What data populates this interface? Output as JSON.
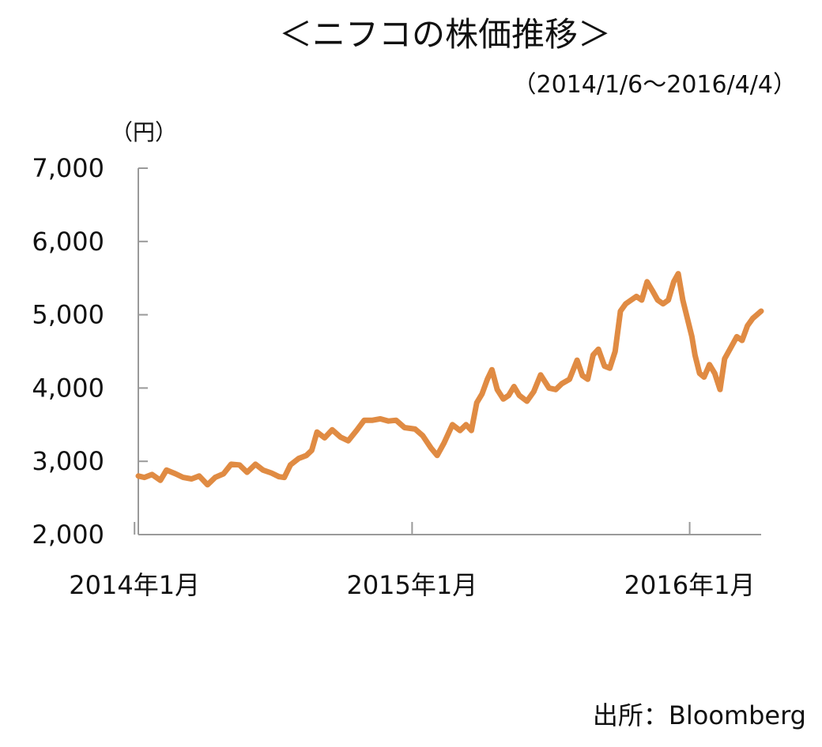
{
  "chart_data": {
    "type": "line",
    "title": "＜ニフコの株価推移＞",
    "subtitle": "（2014/1/6～2016/4/4）",
    "ylabel": "（円）",
    "xlabel": "",
    "source": "出所：Bloomberg",
    "ylim": [
      2000,
      7000
    ],
    "yticks": [
      2000,
      3000,
      4000,
      5000,
      6000,
      7000
    ],
    "ytick_labels": [
      "2,000",
      "3,000",
      "4,000",
      "5,000",
      "6,000",
      "7,000"
    ],
    "x_range": [
      "2014-01-06",
      "2016-04-04"
    ],
    "xticks": [
      "2014-01-01",
      "2015-01-01",
      "2016-01-01"
    ],
    "xtick_labels": [
      "2014年1月",
      "2015年1月",
      "2016年1月"
    ],
    "grid": false,
    "series": [
      {
        "color": "#e08b43",
        "points": [
          [
            "2014-01-06",
            2800
          ],
          [
            "2014-01-14",
            2780
          ],
          [
            "2014-01-24",
            2820
          ],
          [
            "2014-02-04",
            2740
          ],
          [
            "2014-02-12",
            2880
          ],
          [
            "2014-02-24",
            2830
          ],
          [
            "2014-03-06",
            2780
          ],
          [
            "2014-03-17",
            2760
          ],
          [
            "2014-03-27",
            2800
          ],
          [
            "2014-04-07",
            2680
          ],
          [
            "2014-04-17",
            2780
          ],
          [
            "2014-04-28",
            2830
          ],
          [
            "2014-05-08",
            2960
          ],
          [
            "2014-05-19",
            2950
          ],
          [
            "2014-05-29",
            2850
          ],
          [
            "2014-06-09",
            2960
          ],
          [
            "2014-06-19",
            2880
          ],
          [
            "2014-06-30",
            2840
          ],
          [
            "2014-07-10",
            2790
          ],
          [
            "2014-07-17",
            2780
          ],
          [
            "2014-07-25",
            2950
          ],
          [
            "2014-08-05",
            3040
          ],
          [
            "2014-08-15",
            3080
          ],
          [
            "2014-08-22",
            3150
          ],
          [
            "2014-08-29",
            3400
          ],
          [
            "2014-09-08",
            3320
          ],
          [
            "2014-09-18",
            3430
          ],
          [
            "2014-09-29",
            3330
          ],
          [
            "2014-10-09",
            3280
          ],
          [
            "2014-10-20",
            3420
          ],
          [
            "2014-10-30",
            3560
          ],
          [
            "2014-11-10",
            3560
          ],
          [
            "2014-11-20",
            3580
          ],
          [
            "2014-12-01",
            3550
          ],
          [
            "2014-12-11",
            3560
          ],
          [
            "2014-12-22",
            3460
          ],
          [
            "2015-01-05",
            3440
          ],
          [
            "2015-01-15",
            3350
          ],
          [
            "2015-01-26",
            3180
          ],
          [
            "2015-02-03",
            3080
          ],
          [
            "2015-02-12",
            3250
          ],
          [
            "2015-02-23",
            3500
          ],
          [
            "2015-03-05",
            3420
          ],
          [
            "2015-03-13",
            3500
          ],
          [
            "2015-03-20",
            3420
          ],
          [
            "2015-03-27",
            3800
          ],
          [
            "2015-04-03",
            3920
          ],
          [
            "2015-04-10",
            4120
          ],
          [
            "2015-04-16",
            4250
          ],
          [
            "2015-04-23",
            3980
          ],
          [
            "2015-05-01",
            3850
          ],
          [
            "2015-05-08",
            3900
          ],
          [
            "2015-05-15",
            4020
          ],
          [
            "2015-05-22",
            3900
          ],
          [
            "2015-06-01",
            3820
          ],
          [
            "2015-06-10",
            3950
          ],
          [
            "2015-06-19",
            4180
          ],
          [
            "2015-06-30",
            4000
          ],
          [
            "2015-07-09",
            3980
          ],
          [
            "2015-07-17",
            4060
          ],
          [
            "2015-07-27",
            4120
          ],
          [
            "2015-08-06",
            4380
          ],
          [
            "2015-08-13",
            4170
          ],
          [
            "2015-08-20",
            4120
          ],
          [
            "2015-08-27",
            4450
          ],
          [
            "2015-09-03",
            4530
          ],
          [
            "2015-09-11",
            4300
          ],
          [
            "2015-09-18",
            4270
          ],
          [
            "2015-09-25",
            4500
          ],
          [
            "2015-10-02",
            5050
          ],
          [
            "2015-10-09",
            5150
          ],
          [
            "2015-10-16",
            5200
          ],
          [
            "2015-10-23",
            5250
          ],
          [
            "2015-10-30",
            5200
          ],
          [
            "2015-11-06",
            5450
          ],
          [
            "2015-11-13",
            5330
          ],
          [
            "2015-11-20",
            5200
          ],
          [
            "2015-11-27",
            5150
          ],
          [
            "2015-12-04",
            5200
          ],
          [
            "2015-12-11",
            5450
          ],
          [
            "2015-12-17",
            5560
          ],
          [
            "2015-12-23",
            5200
          ],
          [
            "2016-01-04",
            4700
          ],
          [
            "2016-01-08",
            4450
          ],
          [
            "2016-01-14",
            4200
          ],
          [
            "2016-01-20",
            4150
          ],
          [
            "2016-01-27",
            4320
          ],
          [
            "2016-02-03",
            4200
          ],
          [
            "2016-02-10",
            3980
          ],
          [
            "2016-02-16",
            4400
          ],
          [
            "2016-02-24",
            4550
          ],
          [
            "2016-03-03",
            4700
          ],
          [
            "2016-03-10",
            4650
          ],
          [
            "2016-03-17",
            4850
          ],
          [
            "2016-03-24",
            4950
          ],
          [
            "2016-04-04",
            5050
          ]
        ]
      }
    ]
  }
}
